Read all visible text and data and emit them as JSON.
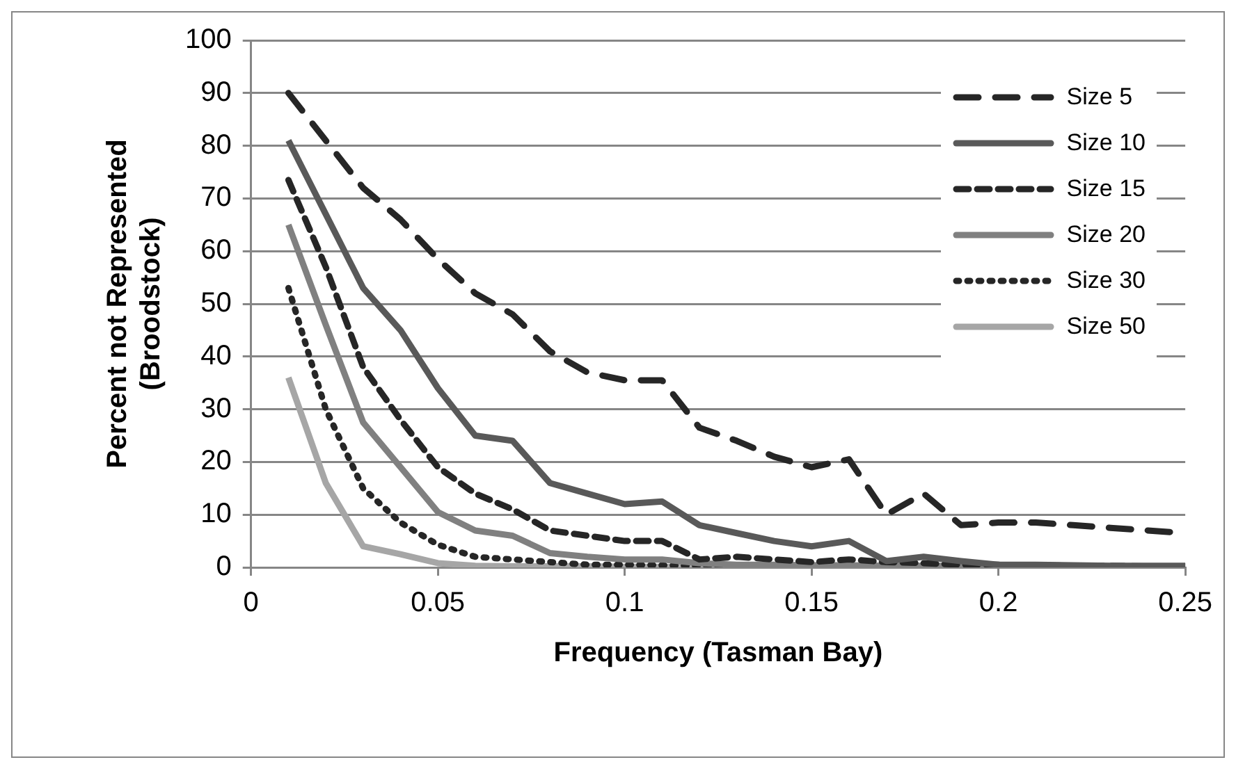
{
  "chart_data": {
    "type": "line",
    "xlabel": "Frequency (Tasman Bay)",
    "ylabel": "Percent not Represented (Broodstock)",
    "x": [
      0.01,
      0.02,
      0.03,
      0.04,
      0.05,
      0.06,
      0.07,
      0.08,
      0.09,
      0.1,
      0.11,
      0.12,
      0.13,
      0.14,
      0.15,
      0.16,
      0.17,
      0.18,
      0.19,
      0.2,
      0.21,
      0.22,
      0.23,
      0.24,
      0.25
    ],
    "series": [
      {
        "name": "Size 5",
        "color": "#262626",
        "line_style": "longdash",
        "values": [
          90,
          81,
          72,
          66,
          58.5,
          52,
          48,
          41,
          37,
          35.5,
          35.5,
          26.5,
          24,
          21,
          19,
          20.5,
          10,
          14,
          8,
          8.5,
          8.5,
          8,
          7.5,
          7,
          6.5
        ]
      },
      {
        "name": "Size 10",
        "color": "#595959",
        "line_style": "solid",
        "values": [
          81,
          67,
          53,
          45,
          34,
          25,
          24,
          16,
          14,
          12,
          12.5,
          8,
          6.5,
          5,
          4,
          5,
          1.2,
          2,
          1.2,
          0.5,
          0.5,
          0.4,
          0.3,
          0.3,
          0.3
        ]
      },
      {
        "name": "Size 15",
        "color": "#262626",
        "line_style": "dashed",
        "values": [
          73.5,
          57,
          38,
          28,
          19,
          14,
          11,
          7,
          6,
          5,
          5,
          1.5,
          2,
          1.5,
          1,
          1.5,
          1,
          0.8,
          0.5,
          0.5,
          0.4,
          0.3,
          0.3,
          0.2,
          0.2
        ]
      },
      {
        "name": "Size 20",
        "color": "#808080",
        "line_style": "solid",
        "values": [
          65,
          46,
          27.5,
          19,
          10.5,
          7,
          6,
          2.7,
          2,
          1.5,
          1.5,
          0.8,
          0.5,
          0.5,
          0.4,
          0.4,
          0.3,
          0.3,
          0.3,
          0.2,
          0.2,
          0.2,
          0.2,
          0.2,
          0.2
        ]
      },
      {
        "name": "Size 30",
        "color": "#262626",
        "line_style": "dotted",
        "values": [
          53,
          30,
          15,
          8.5,
          4.3,
          2,
          1.5,
          1,
          0.5,
          0.5,
          0.4,
          0.3,
          0.3,
          0.2,
          0.2,
          0.2,
          0.2,
          0.2,
          0.2,
          0.2,
          0.2,
          0.2,
          0.2,
          0.2,
          0.2
        ]
      },
      {
        "name": "Size 50",
        "color": "#a6a6a6",
        "line_style": "solid",
        "values": [
          36,
          16,
          4,
          2.5,
          0.8,
          0.3,
          0.2,
          0.2,
          0.2,
          0.1,
          0.1,
          0.1,
          0.1,
          0.1,
          0.1,
          0.1,
          0.1,
          0.1,
          0.1,
          0.1,
          0.1,
          0.1,
          0.1,
          0.1,
          0.1
        ]
      }
    ],
    "xlim": [
      0,
      0.25
    ],
    "xticks": [
      0,
      0.05,
      0.1,
      0.15,
      0.2,
      0.25
    ],
    "ylim": [
      0,
      100
    ],
    "yticks": [
      0,
      10,
      20,
      30,
      40,
      50,
      60,
      70,
      80,
      90,
      100
    ],
    "grid": "y",
    "legend": "top right"
  }
}
